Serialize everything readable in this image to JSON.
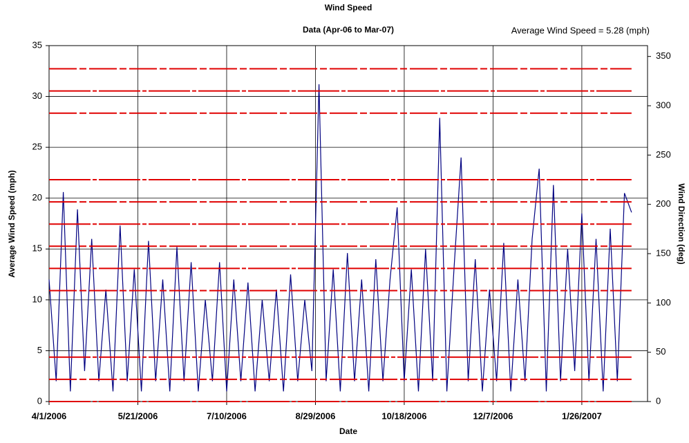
{
  "chart_data": {
    "type": "line",
    "title": "Wind Speed",
    "subtitle": "Data (Apr-06 to Mar-07)",
    "annotation": "Average Wind Speed = 5.28 (mph)",
    "x_label": "Date",
    "y_label": "Average Wind Speed (mph)",
    "y2_label": "Wind Direction (deg)",
    "x": [
      "4/1/2006",
      "4/5/2006",
      "4/9/2006",
      "4/13/2006",
      "4/17/2006",
      "4/21/2006",
      "4/25/2006",
      "4/29/2006",
      "5/3/2006",
      "5/7/2006",
      "5/11/2006",
      "5/15/2006",
      "5/19/2006",
      "5/23/2006",
      "5/27/2006",
      "5/31/2006",
      "6/4/2006",
      "6/8/2006",
      "6/12/2006",
      "6/16/2006",
      "6/20/2006",
      "6/24/2006",
      "6/28/2006",
      "7/2/2006",
      "7/6/2006",
      "7/10/2006",
      "7/14/2006",
      "7/18/2006",
      "7/22/2006",
      "7/26/2006",
      "7/30/2006",
      "8/3/2006",
      "8/7/2006",
      "8/11/2006",
      "8/15/2006",
      "8/19/2006",
      "8/23/2006",
      "8/27/2006",
      "8/31/2006",
      "9/4/2006",
      "9/8/2006",
      "9/12/2006",
      "9/16/2006",
      "9/20/2006",
      "9/24/2006",
      "9/28/2006",
      "10/2/2006",
      "10/6/2006",
      "10/10/2006",
      "10/14/2006",
      "10/18/2006",
      "10/22/2006",
      "10/26/2006",
      "10/30/2006",
      "11/3/2006",
      "11/7/2006",
      "11/11/2006",
      "11/15/2006",
      "11/19/2006",
      "11/23/2006",
      "11/27/2006",
      "12/1/2006",
      "12/5/2006",
      "12/9/2006",
      "12/13/2006",
      "12/17/2006",
      "12/21/2006",
      "12/25/2006",
      "12/29/2006",
      "1/2/2007",
      "1/6/2007",
      "1/10/2007",
      "1/14/2007",
      "1/18/2007",
      "1/22/2007",
      "1/26/2007",
      "1/30/2007",
      "2/3/2007",
      "2/7/2007",
      "2/11/2007",
      "2/15/2007",
      "2/19/2007",
      "2/23/2007"
    ],
    "series": [
      {
        "color": "#000080",
        "values": [
          12,
          2,
          20.6,
          1,
          18.9,
          3,
          16,
          2,
          11,
          1,
          17.3,
          2,
          13,
          1,
          15.8,
          2,
          12,
          1,
          15.2,
          2,
          13.7,
          1,
          10,
          2,
          13.7,
          1,
          12,
          2,
          11.7,
          1,
          10,
          2,
          11,
          1,
          12.5,
          2,
          10,
          3,
          31.2,
          2,
          13,
          1,
          14.6,
          2,
          12,
          1,
          14,
          2,
          12,
          19.1,
          2,
          13,
          1,
          15,
          2,
          27.9,
          1,
          13,
          24,
          2,
          14,
          1,
          11,
          2,
          15.6,
          1,
          12,
          2,
          16,
          22.9,
          1,
          21.3,
          2,
          15,
          3,
          18.5,
          2,
          16,
          1,
          17,
          2,
          20.5,
          18.6
        ]
      }
    ],
    "direction_levels": [
      0,
      22.5,
      45,
      112.5,
      135,
      157.5,
      180,
      202.5,
      225,
      292.5,
      315,
      337.5
    ],
    "direction_color": "#e00000",
    "xlim": [
      "4/1/2006",
      "3/4/2007"
    ],
    "xticks": [
      "4/1/2006",
      "5/21/2006",
      "7/10/2006",
      "8/29/2006",
      "10/18/2006",
      "12/7/2006",
      "1/26/2007"
    ],
    "ylim": [
      0,
      35
    ],
    "yticks": [
      0,
      5,
      10,
      15,
      20,
      25,
      30,
      35
    ],
    "y2lim": [
      0,
      361
    ],
    "y2ticks": [
      0,
      50,
      100,
      150,
      200,
      250,
      300,
      350
    ],
    "grid": true
  }
}
